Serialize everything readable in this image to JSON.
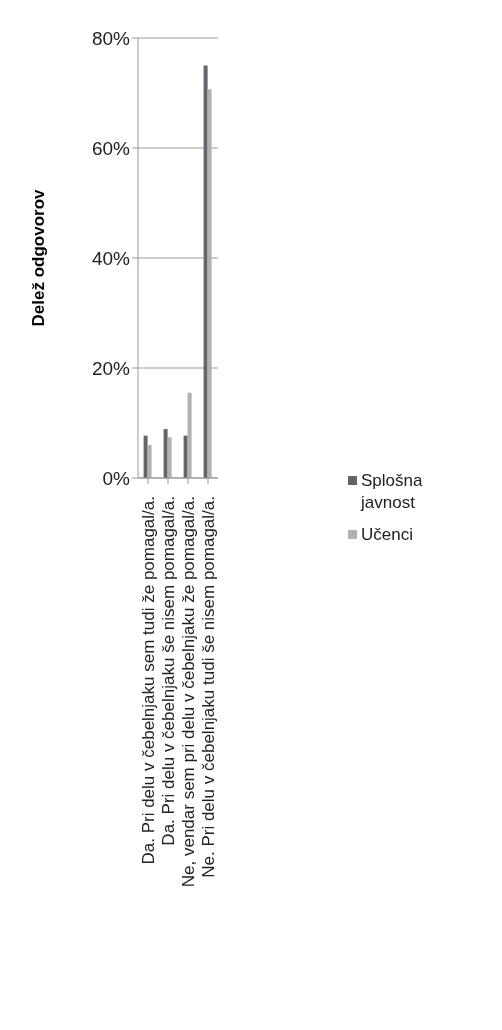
{
  "chart_data": {
    "type": "bar",
    "ylabel": "Delež odgovorov",
    "categories": [
      "Da. Pri delu v čebelnjaku sem tudi že pomagal/a.",
      "Da. Pri delu v čebelnjaku še nisem pomagal/a.",
      "Ne, vendar sem pri delu v čebelnjaku že pomagal/a.",
      "Ne. Pri delu v čebelnjaku tudi še nisem pomagal/a."
    ],
    "series": [
      {
        "name": "Splošna javnost",
        "color": "#646569",
        "values": [
          7.7,
          8.9,
          7.7,
          75.0
        ]
      },
      {
        "name": "Učenci",
        "color": "#b0b1b3",
        "values": [
          6.0,
          7.4,
          15.5,
          70.7
        ]
      }
    ],
    "ylim": [
      0,
      80
    ],
    "yticks": [
      {
        "value": 0,
        "label": "0%"
      },
      {
        "value": 20,
        "label": "20%"
      },
      {
        "value": 40,
        "label": "40%"
      },
      {
        "value": 60,
        "label": "60%"
      },
      {
        "value": 80,
        "label": "80%"
      }
    ],
    "grid": "y",
    "legend": "right"
  }
}
